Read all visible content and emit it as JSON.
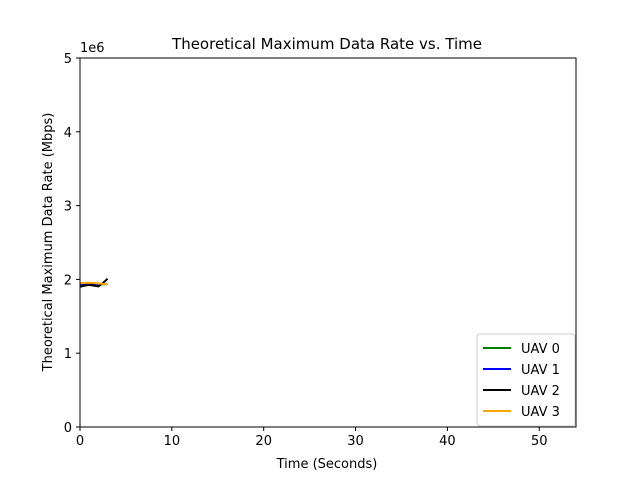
{
  "chart_data": {
    "type": "line",
    "title": "Theoretical Maximum Data Rate vs. Time",
    "xlabel": "Time (Seconds)",
    "ylabel": "Theoretical Maximum Data Rate (Mbps)",
    "y_offset_label": "1e6",
    "xlim": [
      0,
      54
    ],
    "ylim": [
      0,
      5000000
    ],
    "x_ticks": [
      0,
      10,
      20,
      30,
      40,
      50
    ],
    "x_tick_labels": [
      "0",
      "10",
      "20",
      "30",
      "40",
      "50"
    ],
    "y_ticks": [
      0,
      1000000,
      2000000,
      3000000,
      4000000,
      5000000
    ],
    "y_tick_labels": [
      "0",
      "1",
      "2",
      "3",
      "4",
      "5"
    ],
    "grid": false,
    "legend_position": "bottom-right",
    "series": [
      {
        "name": "UAV 0",
        "color": "#008000",
        "x": [
          0,
          0.5,
          1,
          1.5,
          2,
          2.5,
          3
        ],
        "y": [
          1930000,
          1935000,
          1938000,
          1936000,
          1933000,
          1934000,
          1936000
        ]
      },
      {
        "name": "UAV 1",
        "color": "#0000ff",
        "x": [
          0,
          0.5,
          1,
          1.5,
          2,
          2.5,
          3
        ],
        "y": [
          1935000,
          1937000,
          1940000,
          1938000,
          1936000,
          1937000,
          1938000
        ]
      },
      {
        "name": "UAV 2",
        "color": "#000000",
        "x": [
          0,
          0.5,
          1,
          1.5,
          2,
          2.5,
          3
        ],
        "y": [
          1900000,
          1915000,
          1925000,
          1915000,
          1905000,
          1950000,
          2010000
        ]
      },
      {
        "name": "UAV 3",
        "color": "#ffa500",
        "x": [
          0,
          0.5,
          1,
          1.5,
          2,
          2.5,
          3
        ],
        "y": [
          1950000,
          1952000,
          1955000,
          1951000,
          1945000,
          1940000,
          1938000
        ]
      }
    ]
  }
}
